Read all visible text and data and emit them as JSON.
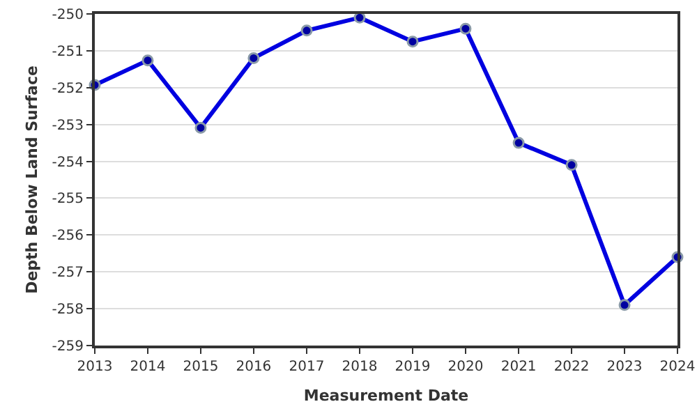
{
  "chart_data": {
    "type": "line",
    "xlabel": "Measurement Date",
    "ylabel": "Depth Below Land Surface",
    "x": [
      "2013",
      "2014",
      "2015",
      "2016",
      "2017",
      "2018",
      "2019",
      "2020",
      "2021",
      "2022",
      "2023",
      "2024"
    ],
    "series": [
      {
        "color": "#0000e0",
        "values": [
          -251.93,
          -251.26,
          -253.09,
          -251.2,
          -250.45,
          -250.1,
          -250.75,
          -250.4,
          -253.5,
          -254.1,
          -257.9,
          -256.6
        ]
      }
    ],
    "xlim": [
      "2013",
      "2024"
    ],
    "xticks": [
      "2013",
      "2014",
      "2015",
      "2016",
      "2017",
      "2018",
      "2019",
      "2020",
      "2021",
      "2022",
      "2023",
      "2024"
    ],
    "ylim": [
      -259,
      -250
    ],
    "yticks": [
      -259,
      -258,
      -257,
      -256,
      -255,
      -254,
      -253,
      -252,
      -251,
      -250
    ],
    "grid": "y",
    "marker": "circle",
    "line_style": "solid",
    "legend": false
  }
}
